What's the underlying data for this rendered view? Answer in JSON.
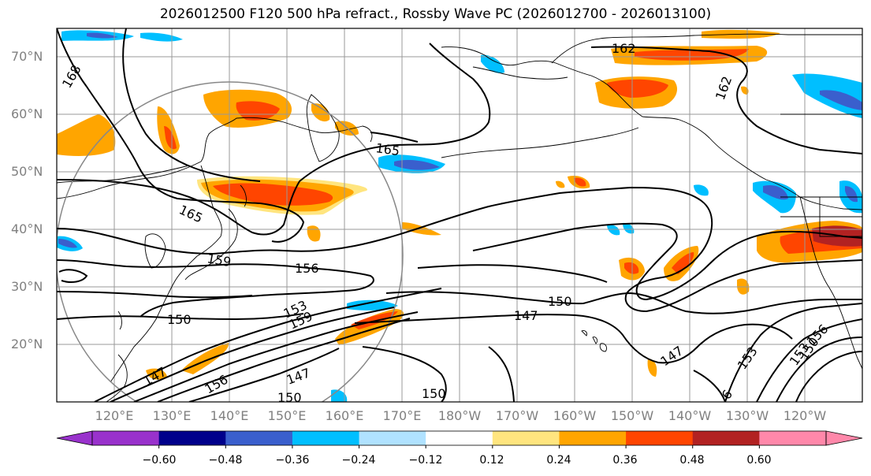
{
  "title": "2026012500 F120 500 hPa refract., Rossby Wave PC (2026012700 - 2026013100)",
  "lat_labels": [
    "70°N",
    "60°N",
    "50°N",
    "40°N",
    "30°N",
    "20°N"
  ],
  "lon_labels": [
    "120°E",
    "130°E",
    "140°E",
    "150°E",
    "160°E",
    "170°E",
    "180°W",
    "170°W",
    "160°W",
    "150°W",
    "140°W",
    "130°W",
    "120°W"
  ],
  "contour_labels": [
    "168",
    "162",
    "162",
    "165",
    "165",
    "159",
    "156",
    "150",
    "150",
    "147",
    "159",
    "153",
    "147",
    "147",
    "156",
    "150",
    "150",
    "153",
    "153",
    "156",
    "150",
    "147",
    "6"
  ],
  "colorbar": {
    "ticks": [
      "−0.60",
      "−0.48",
      "−0.36",
      "−0.24",
      "−0.12",
      "0.12",
      "0.24",
      "0.36",
      "0.48",
      "0.60"
    ],
    "colors": [
      "#9932cc",
      "#00008b",
      "#3a5fcd",
      "#00bfff",
      "#b0e2ff",
      "#ffffff",
      "#ffe57f",
      "#ffa500",
      "#ff4500",
      "#b22222",
      "#ff88aa"
    ]
  }
}
